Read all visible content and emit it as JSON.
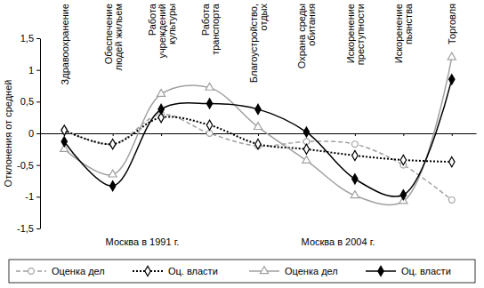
{
  "chart_data": {
    "type": "line",
    "y_label": "Отклонения от средней",
    "categories": [
      "Здравоохранение",
      "Обеспечение\nлюдей жильем",
      "Работа\nучреждений\nкультуры",
      "Работа\nтранспорта",
      "Благоустройство,\nотдых",
      "Охрана среды\nобитания",
      "Искоренение\nпреступности",
      "Искоренение\nпьянства",
      "Торговля"
    ],
    "ylim": [
      -1.5,
      1.5
    ],
    "yticks": [
      {
        "value": -1.5,
        "label": "-1,5"
      },
      -1,
      {
        "value": -0.5,
        "label": "-0,5"
      },
      0,
      {
        "value": 0.5,
        "label": "0,5"
      },
      1,
      {
        "value": 1.5,
        "label": "1,5"
      }
    ],
    "series": [
      {
        "name": "Оценка дел",
        "color": "#a0a0a0",
        "line_style": "dashed",
        "marker": "circle-open",
        "values": [
          0.05,
          -0.17,
          0.3,
          0.0,
          -0.2,
          -0.13,
          -0.17,
          -0.5,
          -1.05
        ]
      },
      {
        "name": "Оц. власти",
        "color": "#000000",
        "line_style": "dotted",
        "marker": "diamond-open",
        "values": [
          0.05,
          -0.17,
          0.25,
          0.13,
          -0.17,
          -0.25,
          -0.35,
          -0.42,
          -0.45
        ]
      },
      {
        "name": "Оценка дел",
        "color": "#a0a0a0",
        "line_style": "solid",
        "marker": "triangle-open",
        "values": [
          -0.25,
          -0.65,
          0.62,
          0.72,
          0.1,
          -0.43,
          -0.98,
          -1.07,
          1.2
        ]
      },
      {
        "name": "Оц. власти",
        "color": "#000000",
        "line_style": "solid",
        "marker": "diamond",
        "values": [
          -0.13,
          -0.83,
          0.38,
          0.47,
          0.38,
          0.02,
          -0.72,
          -0.97,
          0.85
        ]
      }
    ],
    "annotations": [
      {
        "text": "Москва в 1991 г."
      },
      {
        "text": "Москва в 2004 г."
      }
    ],
    "legend": "bottom"
  }
}
